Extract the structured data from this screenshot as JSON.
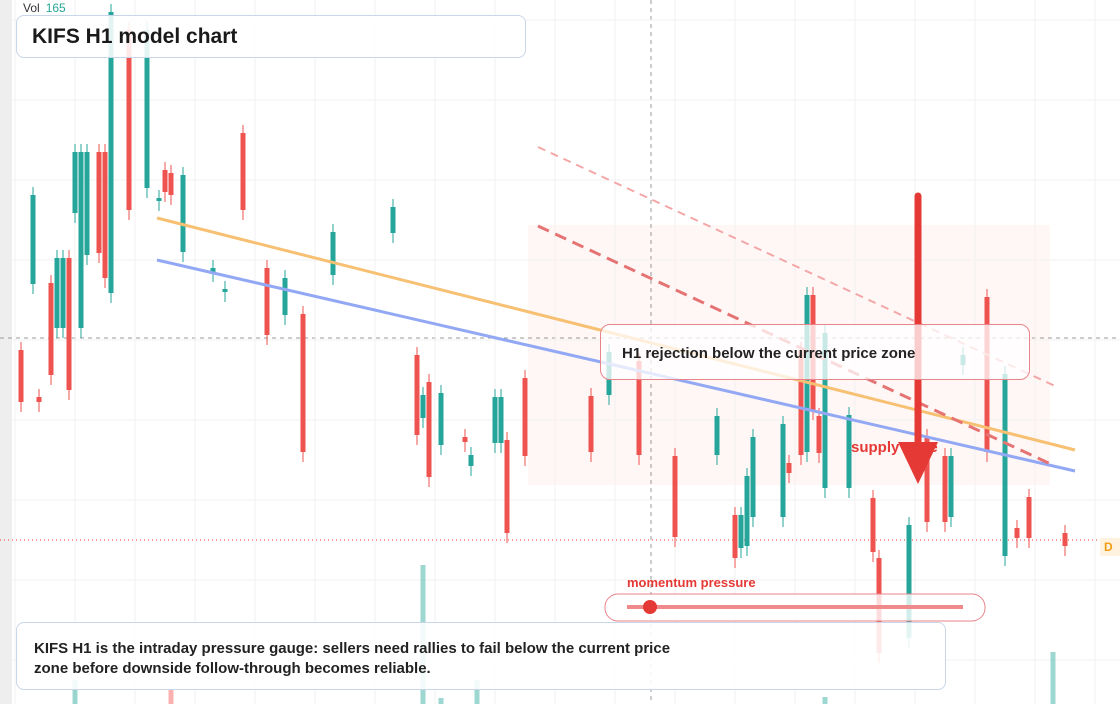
{
  "header": {
    "vol_label": "Vol",
    "vol_value": 165,
    "title": "KIFS H1 model chart"
  },
  "annotations": {
    "callout": "H1 rejection below the current price zone",
    "zone_label": "supply zone",
    "gauge_label": "momentum pressure",
    "summary": "KIFS H1 is the intraday pressure gauge: sellers need rallies to fail below the current price zone before downside follow-through becomes reliable.",
    "price_flag": "D"
  }
}
